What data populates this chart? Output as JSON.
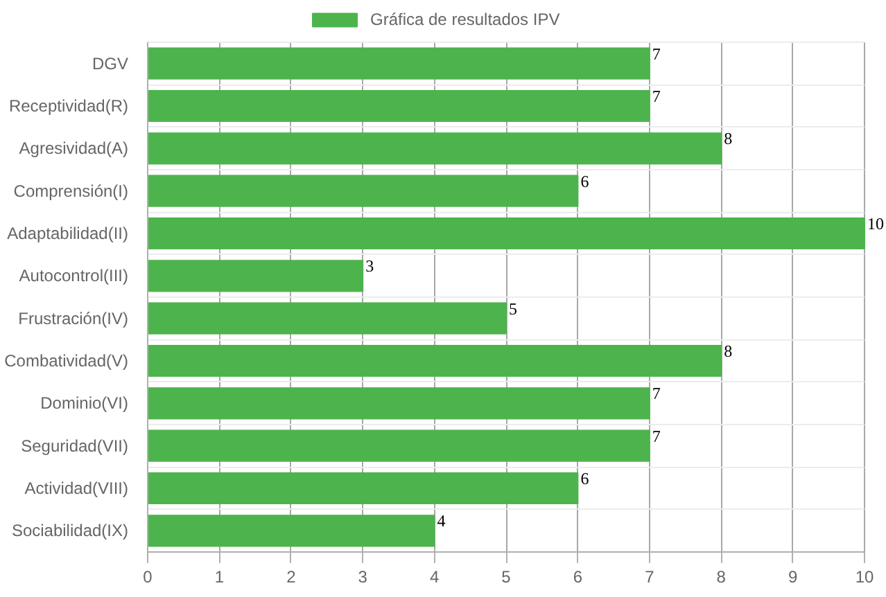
{
  "chart_data": {
    "type": "bar",
    "orientation": "horizontal",
    "categories": [
      "DGV",
      "Receptividad(R)",
      "Agresividad(A)",
      "Comprensión(I)",
      "Adaptabilidad(II)",
      "Autocontrol(III)",
      "Frustración(IV)",
      "Combatividad(V)",
      "Dominio(VI)",
      "Seguridad(VII)",
      "Actividad(VIII)",
      "Sociabilidad(IX)"
    ],
    "series": [
      {
        "name": "Gráfica de resultados IPV",
        "color": "#4db44d",
        "values": [
          7,
          7,
          8,
          6,
          10,
          3,
          5,
          8,
          7,
          7,
          6,
          4
        ]
      }
    ],
    "xlim": [
      0,
      10
    ],
    "xticks": [
      0,
      1,
      2,
      3,
      4,
      5,
      6,
      7,
      8,
      9,
      10
    ],
    "grid": true,
    "legend": "top",
    "data_labels": true
  }
}
